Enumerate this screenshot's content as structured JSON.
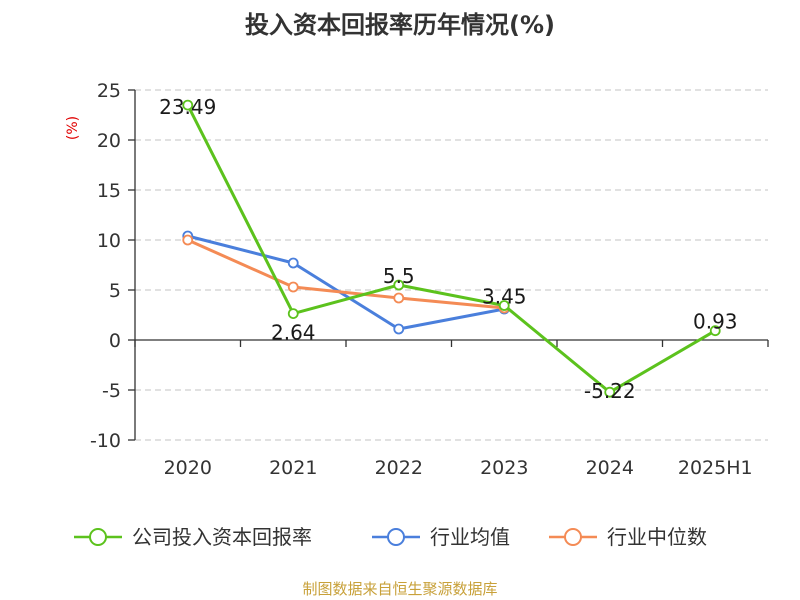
{
  "title": "投入资本回报率历年情况(%)",
  "source": "制图数据来自恒生聚源数据库",
  "colors": {
    "company": "#5cc21d",
    "industry_avg": "#4a7fdc",
    "industry_median": "#f48b55",
    "grid": "#cfcfcf",
    "axis": "#333333",
    "unit": "#e00000",
    "source": "#c8a13a"
  },
  "chart_data": {
    "type": "line",
    "title": "投入资本回报率历年情况(%)",
    "ylabel": "(%)",
    "xlabel": "",
    "categories": [
      "2020",
      "2021",
      "2022",
      "2023",
      "2024",
      "2025H1"
    ],
    "ylim": [
      -10,
      25
    ],
    "yticks": [
      25,
      20,
      15,
      10,
      5,
      0,
      -5,
      -10
    ],
    "grid": true,
    "legend_position": "bottom",
    "series": [
      {
        "name": "公司投入资本回报率",
        "color": "#5cc21d",
        "values": [
          23.49,
          2.64,
          5.5,
          3.45,
          -5.22,
          0.93
        ],
        "labels": [
          "23.49",
          "2.64",
          "5.5",
          "3.45",
          "-5.22",
          "0.93"
        ]
      },
      {
        "name": "行业均值",
        "color": "#4a7fdc",
        "values": [
          10.4,
          7.7,
          1.1,
          3.1,
          null,
          null
        ]
      },
      {
        "name": "行业中位数",
        "color": "#f48b55",
        "values": [
          10.0,
          5.3,
          4.2,
          3.2,
          null,
          null
        ]
      }
    ]
  }
}
